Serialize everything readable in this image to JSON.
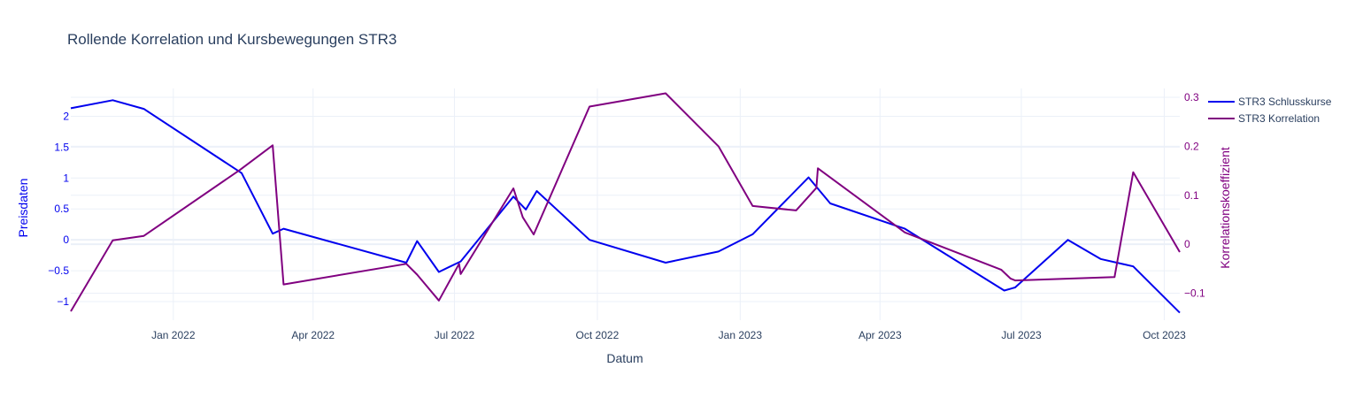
{
  "chart_data": {
    "type": "line",
    "title": "Rollende Korrelation und Kursbewegungen STR3",
    "xlabel": "Datum",
    "ylabel": "Preisdaten",
    "y2label": "Korrelationskoeffizient",
    "x_ticks": [
      "Jan 2022",
      "Apr 2022",
      "Jul 2022",
      "Oct 2022",
      "Jan 2023",
      "Apr 2023",
      "Jul 2023",
      "Oct 2023"
    ],
    "x_tick_dates": [
      "2022-01-01",
      "2022-04-01",
      "2022-07-01",
      "2022-10-01",
      "2023-01-01",
      "2023-04-01",
      "2023-07-01",
      "2023-10-01"
    ],
    "xlim": [
      "2021-10-27",
      "2023-10-11"
    ],
    "y_ticks": [
      "−1",
      "−0.5",
      "0",
      "0.5",
      "1",
      "1.5",
      "2"
    ],
    "y_tick_values": [
      -1,
      -0.5,
      0,
      0.5,
      1,
      1.5,
      2
    ],
    "ylim": [
      -1.3,
      2.45
    ],
    "y2_ticks": [
      "−0.1",
      "0",
      "0.1",
      "0.2",
      "0.3"
    ],
    "y2_tick_values": [
      -0.1,
      0,
      0.1,
      0.2,
      0.3
    ],
    "y2lim": [
      -0.155,
      0.318
    ],
    "grid": true,
    "legend_position": "top-right",
    "colors": {
      "price": "#0000ee",
      "correlation": "#800080",
      "grid": "#ebf0f8",
      "zeroline": "#ebf0f8",
      "text": "#2a3f5f"
    },
    "series": [
      {
        "name": "STR3 Schlusskurse",
        "axis": "y",
        "color": "#0000ee",
        "x": [
          "2021-10-27",
          "2021-11-23",
          "2021-12-13",
          "2022-02-14",
          "2022-03-06",
          "2022-03-13",
          "2022-05-31",
          "2022-06-07",
          "2022-06-21",
          "2022-07-05",
          "2022-08-08",
          "2022-08-16",
          "2022-08-23",
          "2022-09-26",
          "2022-11-14",
          "2022-12-18",
          "2023-01-09",
          "2023-02-14",
          "2023-02-28",
          "2023-04-17",
          "2023-06-20",
          "2023-06-27",
          "2023-07-31",
          "2023-08-21",
          "2023-09-11",
          "2023-10-11"
        ],
        "y": [
          2.13,
          2.26,
          2.12,
          1.08,
          0.1,
          0.18,
          -0.37,
          -0.02,
          -0.52,
          -0.35,
          0.7,
          0.49,
          0.79,
          0.0,
          -0.37,
          -0.19,
          0.09,
          1.01,
          0.59,
          0.18,
          -0.82,
          -0.77,
          0.0,
          -0.31,
          -0.43,
          -1.18
        ]
      },
      {
        "name": "STR3 Korrelation",
        "axis": "y2",
        "color": "#800080",
        "x": [
          "2021-10-27",
          "2021-11-23",
          "2021-12-13",
          "2022-02-13",
          "2022-03-06",
          "2022-03-13",
          "2022-05-31",
          "2022-06-07",
          "2022-06-21",
          "2022-07-04",
          "2022-07-05",
          "2022-08-08",
          "2022-08-14",
          "2022-08-21",
          "2022-09-26",
          "2022-11-14",
          "2022-12-18",
          "2023-01-09",
          "2023-02-06",
          "2023-02-19",
          "2023-02-20",
          "2023-04-17",
          "2023-06-18",
          "2023-06-24",
          "2023-06-27",
          "2023-08-30",
          "2023-09-11",
          "2023-10-11"
        ],
        "y": [
          -0.137,
          0.008,
          0.017,
          0.152,
          0.202,
          -0.082,
          -0.04,
          -0.062,
          -0.115,
          -0.04,
          -0.061,
          0.114,
          0.055,
          0.02,
          0.281,
          0.308,
          0.2,
          0.078,
          0.069,
          0.115,
          0.155,
          0.024,
          -0.052,
          -0.07,
          -0.074,
          -0.067,
          0.147,
          -0.016
        ]
      }
    ]
  }
}
